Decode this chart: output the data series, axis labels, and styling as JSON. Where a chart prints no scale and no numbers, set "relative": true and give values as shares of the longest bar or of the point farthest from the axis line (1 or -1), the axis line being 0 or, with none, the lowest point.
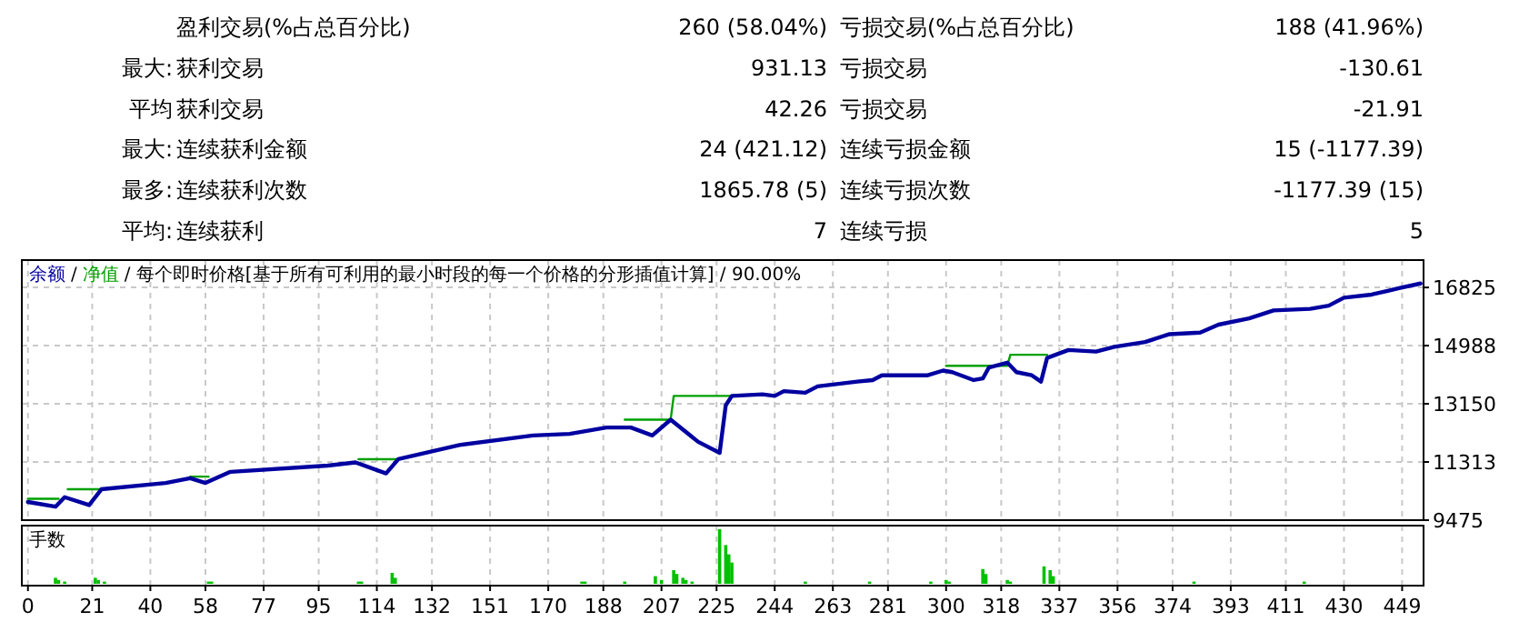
{
  "chart_data": [
    {
      "type": "other",
      "annotations": [
        "盈利交易(%占总百分比)",
        "260 (58.04%)",
        "亏损交易(%占总百分比)",
        "188 (41.96%)",
        "最大:",
        "获利交易",
        "931.13",
        "亏损交易",
        "-130.61",
        "平均",
        "获利交易",
        "42.26",
        "亏损交易",
        "-21.91",
        "最大:",
        "连续获利金额",
        "24 (421.12)",
        "连续亏损金额",
        "15 (-1177.39)",
        "最多:",
        "连续获利次数",
        "1865.78 (5)",
        "连续亏损次数",
        "-1177.39 (15)",
        "平均:",
        "连续获利",
        "7",
        "连续亏损",
        "5"
      ]
    },
    {
      "type": "line",
      "annotations": [
        "/"
      ],
      "title": "/ 每个即时价格[基于所有可利用的最小时段的每一个价格的分形插值计算] / 90.00%",
      "legend": "top left",
      "grid": true,
      "tick_labels": "y",
      "xlim": [
        -2,
        456
      ],
      "xticks": [
        0,
        21,
        40,
        58,
        77,
        95,
        114,
        132,
        151,
        170,
        188,
        207,
        225,
        244,
        263,
        281,
        300,
        318,
        337,
        356,
        374,
        393,
        411,
        430,
        449
      ],
      "ylim": [
        9475,
        17690
      ],
      "yticks": [
        9475,
        11313,
        13150,
        14988,
        16825
      ],
      "series": [
        {
          "name": "余额",
          "color": "#0000a0",
          "x": [
            0,
            9,
            12,
            20,
            24,
            45,
            53,
            58,
            66,
            98,
            107,
            117,
            121,
            141,
            165,
            177,
            189,
            197,
            204,
            210,
            219,
            226,
            228,
            230,
            240,
            244,
            247,
            254,
            258,
            271,
            276,
            279,
            294,
            299,
            302,
            309,
            312,
            314,
            320,
            323,
            328,
            331,
            333,
            340,
            349,
            355,
            365,
            373,
            383,
            389,
            399,
            407,
            419,
            425,
            430,
            439,
            448,
            455
          ],
          "values": [
            10050,
            9900,
            10200,
            9950,
            10450,
            10650,
            10800,
            10650,
            11000,
            11200,
            11300,
            10950,
            11400,
            11850,
            12150,
            12200,
            12400,
            12400,
            12150,
            12650,
            11950,
            11600,
            13100,
            13400,
            13450,
            13400,
            13550,
            13500,
            13700,
            13850,
            13900,
            14050,
            14050,
            14200,
            14150,
            13900,
            13950,
            14300,
            14450,
            14150,
            14050,
            13850,
            14600,
            14850,
            14800,
            14950,
            15100,
            15350,
            15400,
            15650,
            15850,
            16100,
            16150,
            16250,
            16500,
            16600,
            16800,
            16950
          ]
        },
        {
          "name": "净值",
          "color": "#00a000",
          "x": [
            0,
            10
          ],
          "values": [
            10150,
            10150
          ]
        },
        {
          "color": "#00a000",
          "x": [
            13,
            24
          ],
          "values": [
            10450,
            10450
          ]
        },
        {
          "color": "#00a000",
          "x": [
            53,
            59
          ],
          "values": [
            10850,
            10850
          ]
        },
        {
          "color": "#00a000",
          "x": [
            108,
            121
          ],
          "values": [
            11400,
            11400
          ]
        },
        {
          "color": "#00a000",
          "x": [
            195,
            210,
            211,
            230
          ],
          "values": [
            12650,
            12650,
            13400,
            13400
          ]
        },
        {
          "color": "#00a000",
          "x": [
            300,
            320,
            321,
            333
          ],
          "values": [
            14350,
            14350,
            14700,
            14700
          ]
        }
      ]
    },
    {
      "type": "bar",
      "title": "手数",
      "relative": true,
      "grid": "x",
      "tick_labels": "x",
      "color": "#00c000",
      "xlim": [
        -2,
        456
      ],
      "xticks": [
        0,
        21,
        40,
        58,
        77,
        95,
        114,
        132,
        151,
        170,
        188,
        207,
        225,
        244,
        263,
        281,
        300,
        318,
        337,
        356,
        374,
        393,
        411,
        430,
        449
      ],
      "x": [
        9,
        10,
        12,
        22,
        23,
        25,
        59,
        60,
        108,
        109,
        119,
        120,
        181,
        182,
        195,
        205,
        207,
        211,
        212,
        214,
        215,
        217,
        226,
        228,
        229,
        230,
        254,
        275,
        295,
        300,
        301,
        312,
        313,
        320,
        321,
        332,
        334,
        335,
        381,
        417
      ],
      "values": [
        0.11,
        0.07,
        0.04,
        0.11,
        0.07,
        0.04,
        0.04,
        0.04,
        0.04,
        0.04,
        0.2,
        0.11,
        0.04,
        0.04,
        0.04,
        0.14,
        0.07,
        0.25,
        0.18,
        0.11,
        0.07,
        0.04,
        1,
        0.71,
        0.54,
        0.39,
        0.04,
        0.04,
        0.04,
        0.07,
        0.04,
        0.27,
        0.18,
        0.07,
        0.04,
        0.32,
        0.25,
        0.14,
        0.04,
        0.04
      ]
    }
  ]
}
